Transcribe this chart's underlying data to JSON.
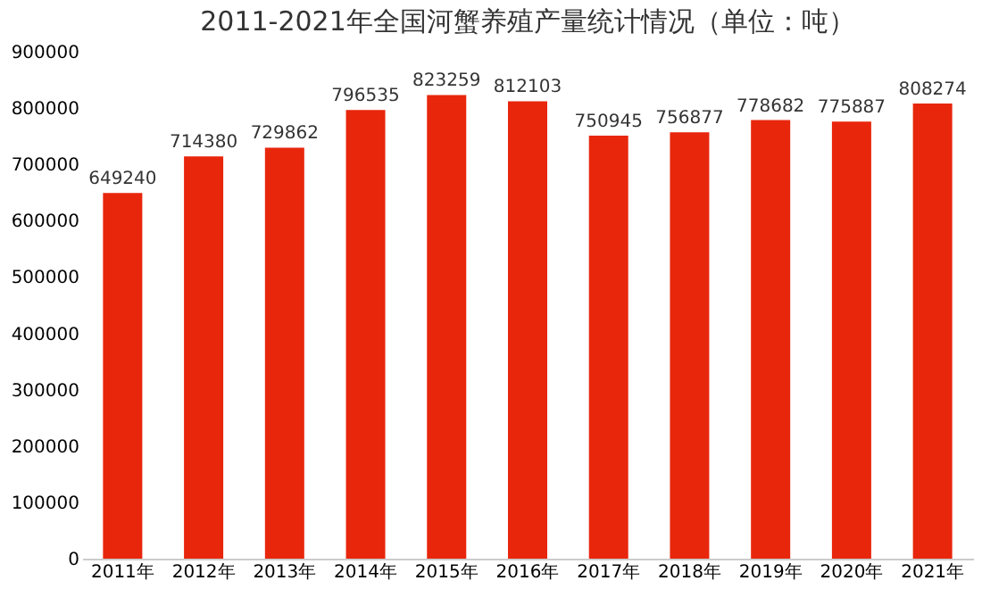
{
  "chart_data": {
    "type": "bar",
    "title": "2011-2021年全国河蟹养殖产量统计情况（单位：吨）",
    "categories": [
      "2011年",
      "2012年",
      "2013年",
      "2014年",
      "2015年",
      "2016年",
      "2017年",
      "2018年",
      "2019年",
      "2020年",
      "2021年"
    ],
    "values": [
      649240,
      714380,
      729862,
      796535,
      823259,
      812103,
      750945,
      756877,
      778682,
      775887,
      808274
    ],
    "color": "#e8260c",
    "ylim": [
      0,
      900000
    ],
    "yticks": [
      0,
      100000,
      200000,
      300000,
      400000,
      500000,
      600000,
      700000,
      800000,
      900000
    ],
    "data_labels": true,
    "grid": false
  }
}
